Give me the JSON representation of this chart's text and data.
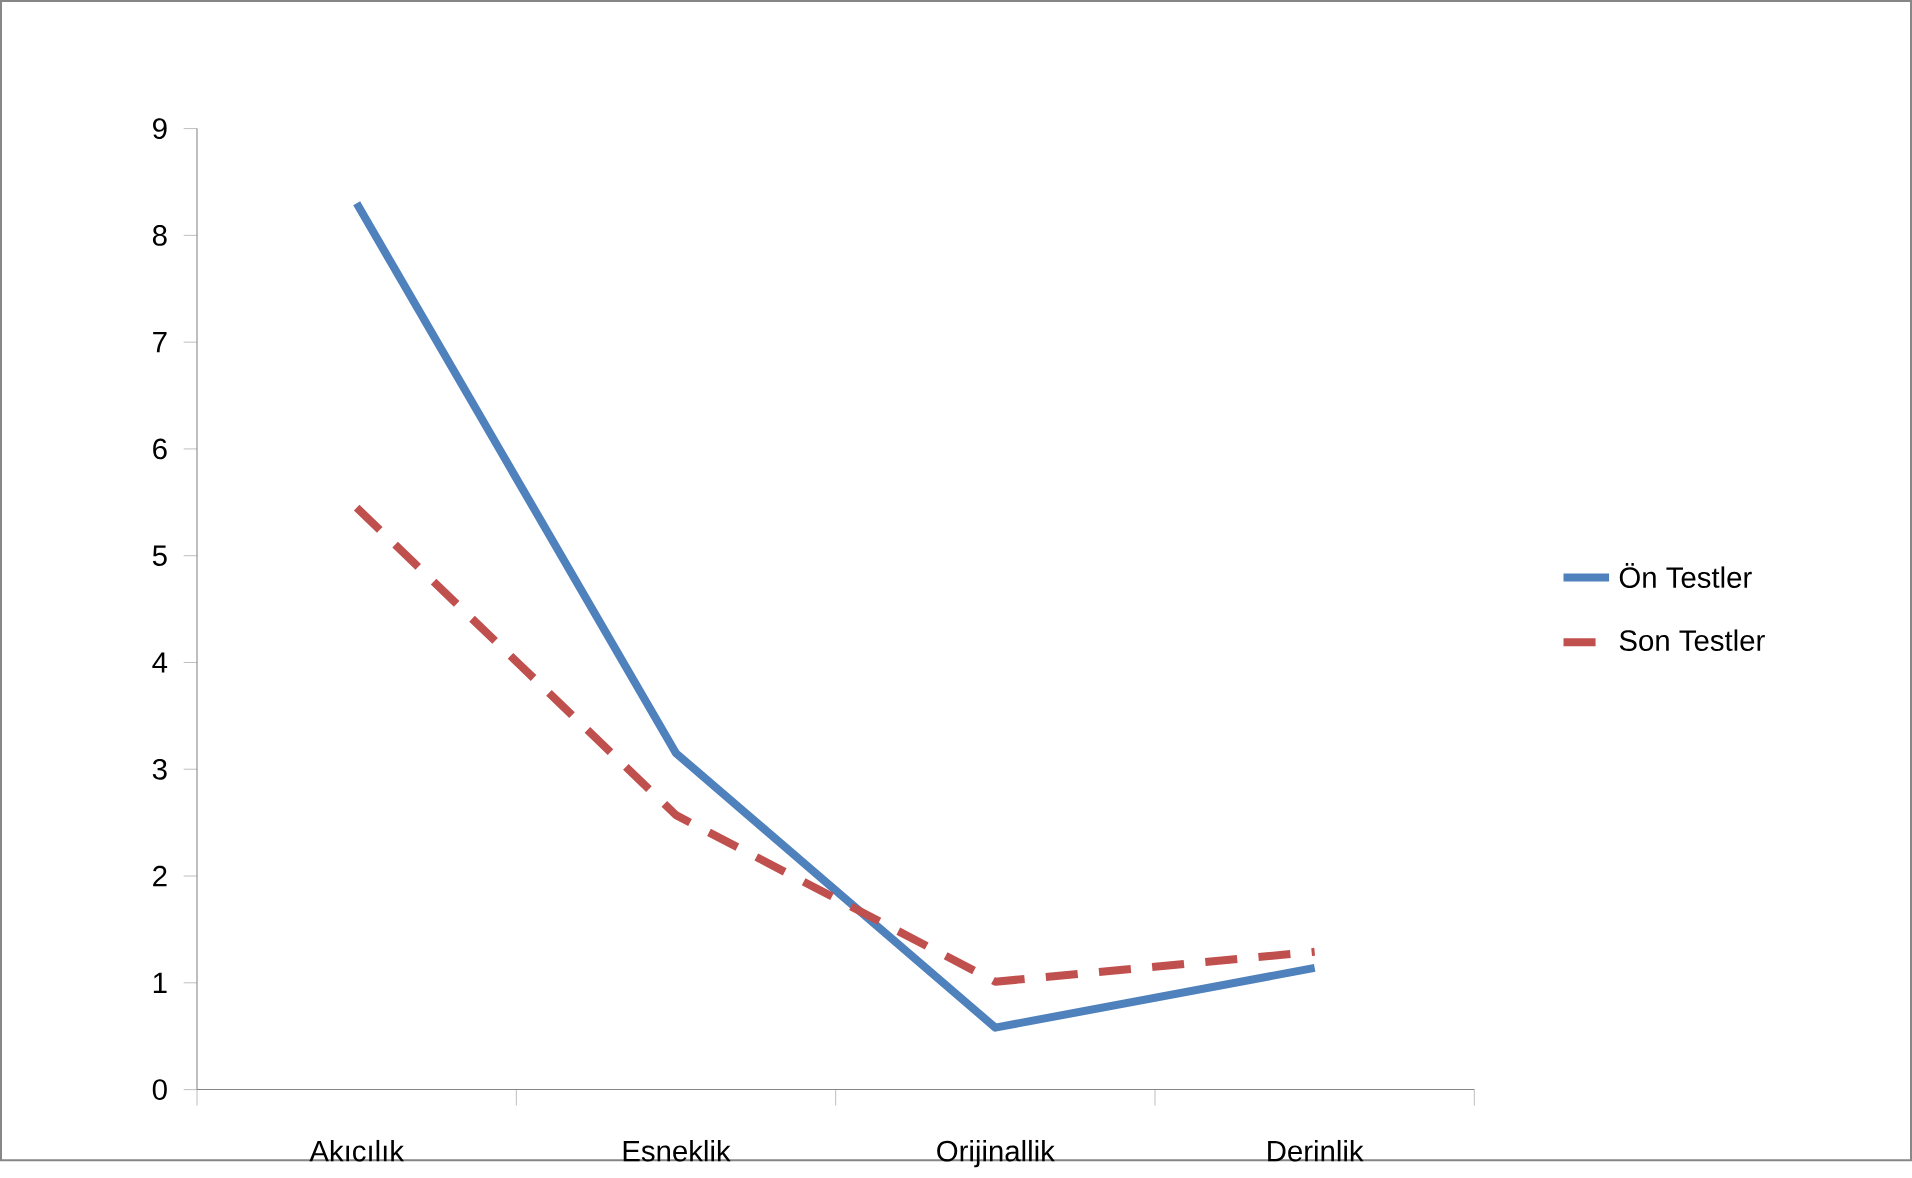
{
  "chart_data": {
    "type": "line",
    "categories": [
      "Akıcılık",
      "Esneklik",
      "Orijinallik",
      "Derinlik"
    ],
    "series": [
      {
        "name": "Ön Testler",
        "color": "#4f81bd",
        "line_style": "solid",
        "values": [
          8.3,
          3.15,
          0.58,
          1.14
        ]
      },
      {
        "name": "Son Testler",
        "color": "#c0504d",
        "line_style": "dashed",
        "values": [
          5.45,
          2.57,
          1.01,
          1.29
        ]
      }
    ],
    "ylim": [
      0,
      9
    ],
    "yticks": [
      0,
      1,
      2,
      3,
      4,
      5,
      6,
      7,
      8,
      9
    ],
    "grid": false,
    "legend": "right"
  }
}
